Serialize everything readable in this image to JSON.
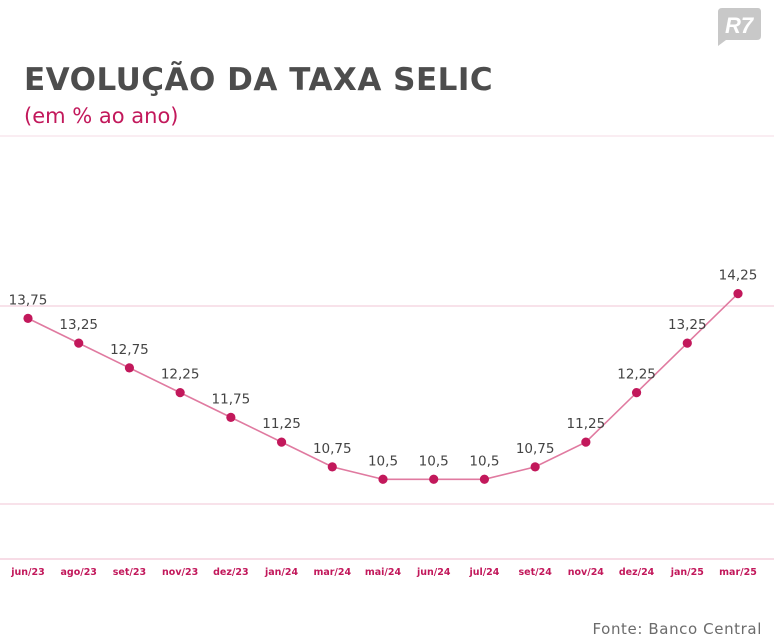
{
  "brand": {
    "logo_text": "R7"
  },
  "header": {
    "title": "EVOLUÇÃO DA TAXA SELIC",
    "subtitle": "(em % ao ano)"
  },
  "footer": {
    "source": "Fonte: Banco Central"
  },
  "colors": {
    "series": "#c2185b",
    "line": "#e07aa0",
    "title": "#4d4d4d",
    "grid": "#f2c6d6",
    "tick": "#c2185b",
    "label": "#444444"
  },
  "chart_data": {
    "type": "line",
    "title": "EVOLUÇÃO DA TAXA SELIC",
    "subtitle": "(em % ao ano)",
    "xlabel": "",
    "ylabel": "",
    "categories": [
      "jun/23",
      "ago/23",
      "set/23",
      "nov/23",
      "dez/23",
      "jan/24",
      "mar/24",
      "mai/24",
      "jun/24",
      "jul/24",
      "set/24",
      "nov/24",
      "dez/24",
      "jan/25",
      "mar/25"
    ],
    "values": [
      13.75,
      13.25,
      12.75,
      12.25,
      11.75,
      11.25,
      10.75,
      10.5,
      10.5,
      10.5,
      10.75,
      11.25,
      12.25,
      13.25,
      14.25
    ],
    "data_labels": [
      "13,75",
      "13,25",
      "12,75",
      "12,25",
      "11,75",
      "11,25",
      "10,75",
      "10,5",
      "10,5",
      "10,5",
      "10,75",
      "11,25",
      "12,25",
      "13,25",
      "14,25"
    ],
    "ylim": [
      7.5,
      18.25
    ],
    "grid": true,
    "legend": "none"
  }
}
